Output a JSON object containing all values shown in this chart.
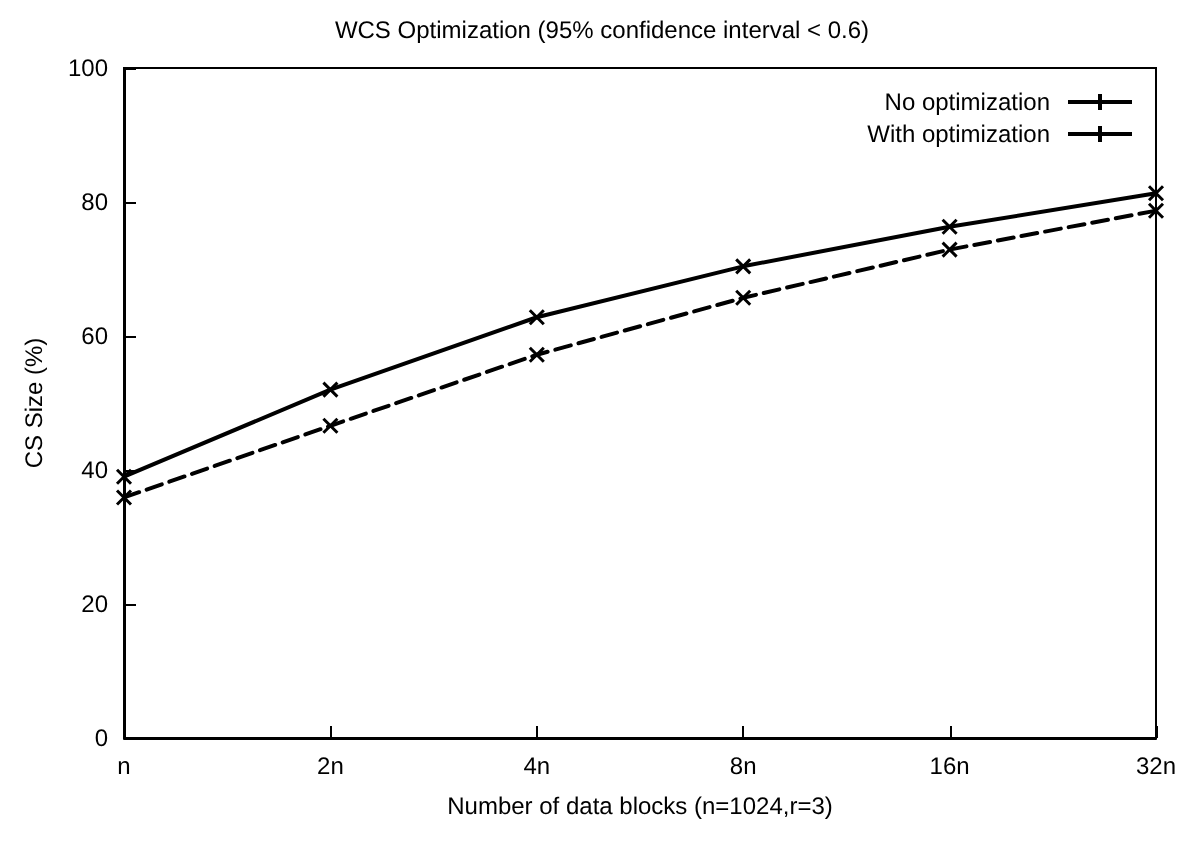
{
  "chart_data": {
    "type": "line",
    "title": "WCS Optimization (95% confidence interval < 0.6)",
    "xlabel": "Number of data blocks (n=1024,r=3)",
    "ylabel": "CS Size (%)",
    "categories": [
      "n",
      "2n",
      "4n",
      "8n",
      "16n",
      "32n"
    ],
    "series": [
      {
        "name": "No optimization",
        "color": "#000000",
        "line_style": "solid",
        "marker": "cross",
        "values": [
          39,
          52,
          62.8,
          70.4,
          76.3,
          81.3
        ]
      },
      {
        "name": "With optimization",
        "color": "#000000",
        "line_style": "dashed",
        "marker": "cross",
        "values": [
          35.9,
          46.6,
          57.2,
          65.7,
          72.9,
          78.7
        ]
      }
    ],
    "ylim": [
      0,
      100
    ],
    "yticks": [
      0,
      20,
      40,
      60,
      80,
      100
    ],
    "grid": false,
    "legend": "top right"
  }
}
